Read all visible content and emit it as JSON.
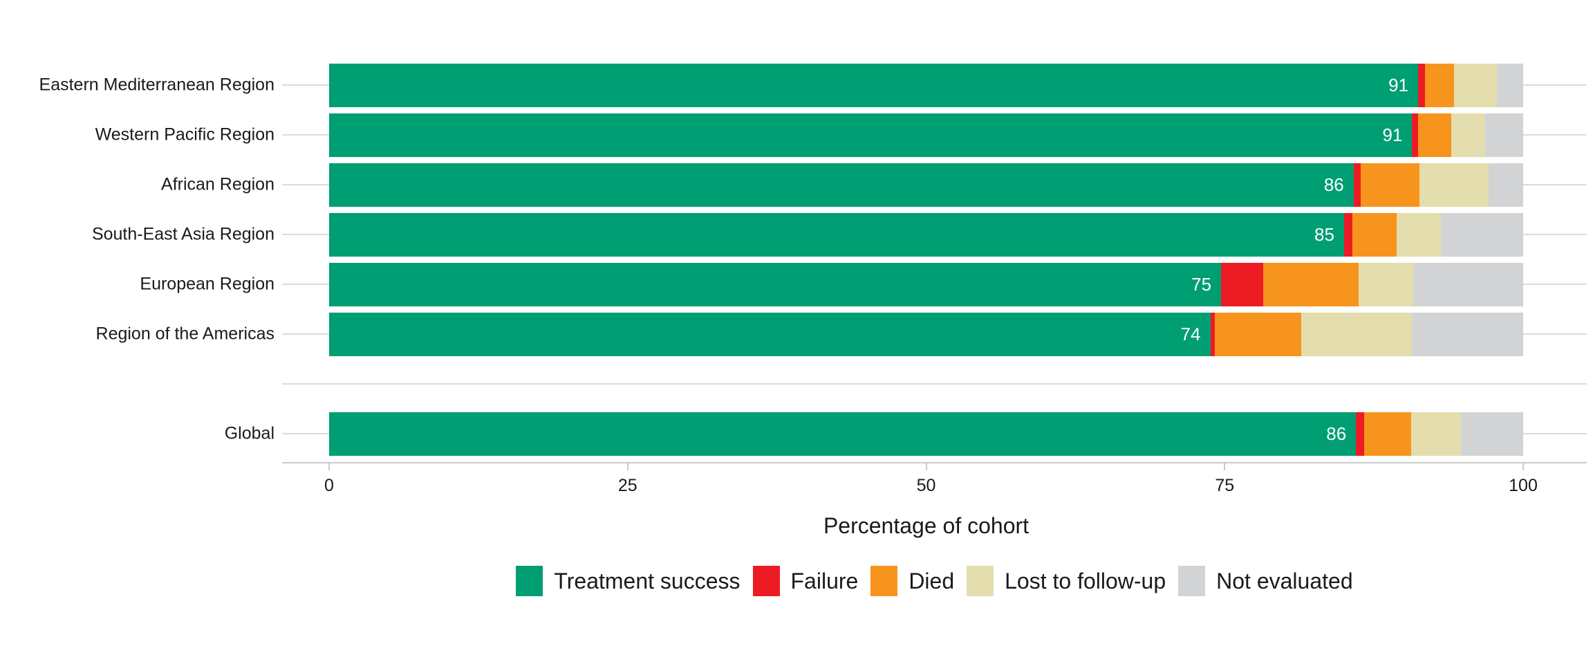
{
  "chart_data": {
    "type": "bar",
    "variant": "stacked-horizontal",
    "title": "",
    "xlabel": "Percentage of cohort",
    "xlim": [
      0,
      100
    ],
    "x_ticks": [
      "0",
      "25",
      "50",
      "75",
      "100"
    ],
    "grid": "row-lines-only",
    "legend_position": "bottom-center",
    "categories": [
      "Eastern Mediterranean Region",
      "Western Pacific Region",
      "African Region",
      "South-East Asia Region",
      "European Region",
      "Region of the Americas",
      "Global"
    ],
    "series": [
      {
        "name": "Treatment success",
        "color": "#009E73",
        "values": [
          91.2,
          90.7,
          85.8,
          85.0,
          74.7,
          73.8,
          86.0
        ]
      },
      {
        "name": "Failure",
        "color": "#ED1C24",
        "values": [
          0.6,
          0.5,
          0.6,
          0.7,
          3.5,
          0.4,
          0.7
        ]
      },
      {
        "name": "Died",
        "color": "#F7941E",
        "values": [
          2.4,
          2.8,
          4.9,
          3.7,
          8.0,
          7.2,
          3.9
        ]
      },
      {
        "name": "Lost to follow-up",
        "color": "#E4DDAD",
        "values": [
          3.6,
          2.8,
          5.8,
          3.7,
          4.6,
          9.3,
          4.2
        ]
      },
      {
        "name": "Not evaluated",
        "color": "#D1D3D4",
        "values": [
          2.2,
          3.2,
          2.9,
          6.9,
          9.2,
          9.3,
          5.2
        ]
      }
    ],
    "bar_labels": [
      "91",
      "91",
      "86",
      "85",
      "75",
      "74",
      "86"
    ],
    "colors": {
      "text": "#1a1a1a",
      "value_label": "#ffffff",
      "grid_line": "#dcdcdc",
      "axis_line": "#c9c9c9"
    }
  }
}
